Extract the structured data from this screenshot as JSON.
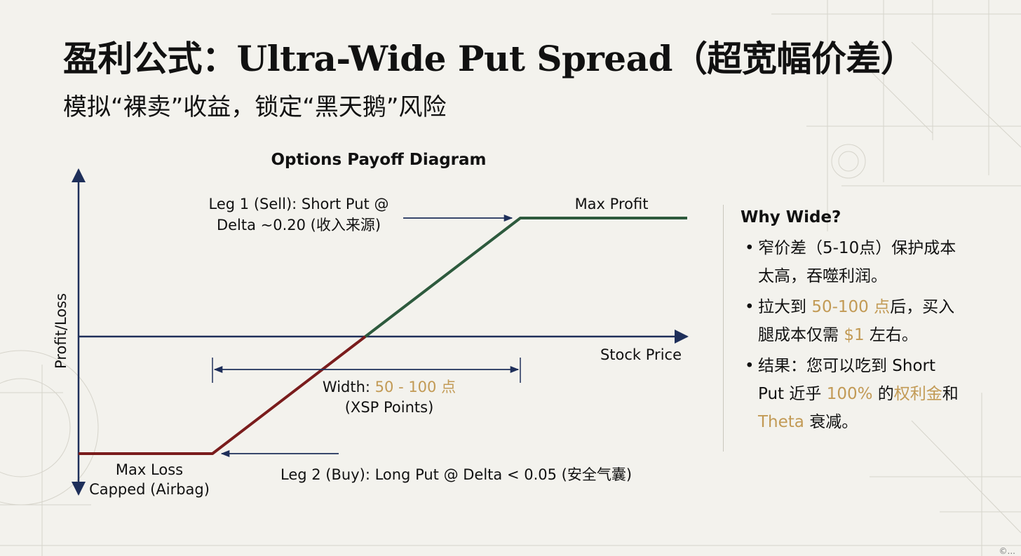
{
  "header": {
    "title": "盈利公式：Ultra-Wide Put Spread（超宽幅价差）",
    "subtitle": "模拟“裸卖”收益，锁定“黑天鹅”风险"
  },
  "diagram": {
    "title": "Options Payoff Diagram",
    "y_axis_label": "Profit/Loss",
    "x_axis_label": "Stock Price",
    "max_profit_label": "Max Profit",
    "max_loss_label_1": "Max Loss",
    "max_loss_label_2": "Capped (Airbag)",
    "leg1_label_1": "Leg 1 (Sell): Short Put @",
    "leg1_label_2": "Delta ~0.20 (收入来源)",
    "leg2_label": "Leg 2 (Buy): Long Put @ Delta < 0.05 (安全气囊)",
    "width_label": "Width: ",
    "width_value": "50 - 100 点",
    "width_unit": "(XSP Points)"
  },
  "side_panel": {
    "heading": "Why Wide?",
    "b1_line1": "窄价差（5-10点）保护成本",
    "b1_line2": "太高，吞噬利润。",
    "b2_pre": "拉大到 ",
    "b2_hl1": "50-100 点",
    "b2_mid": "后，买入",
    "b2_line2_pre": "腿成本仅需 ",
    "b2_hl2": "$1",
    "b2_line2_post": " 左右。",
    "b3_line1": "结果：您可以吃到 Short",
    "b3_pre": "Put 近乎 ",
    "b3_hl1": "100%",
    "b3_mid": " 的",
    "b3_hl2": "权利金",
    "b3_post": "和",
    "b3_hl3": "Theta",
    "b3_end": " 衰减。"
  },
  "colors": {
    "axis": "#1e2f5a",
    "profit_line": "#2d5a3d",
    "loss_line": "#7a1c1c",
    "highlight": "#c29a55",
    "background": "#f3f2ed"
  },
  "footer": {
    "corner_text": "©..."
  }
}
